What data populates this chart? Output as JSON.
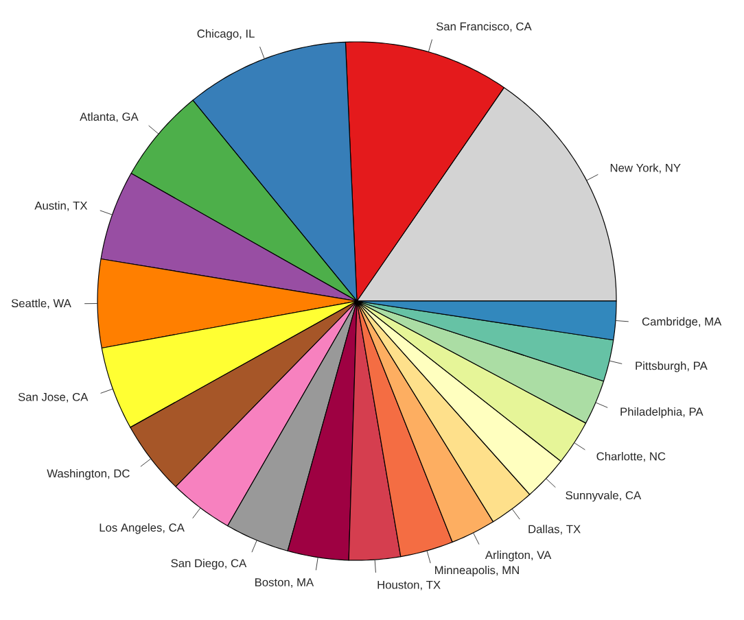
{
  "chart_data": {
    "type": "pie",
    "categories": [
      "New York, NY",
      "San Francisco, CA",
      "Chicago, IL",
      "Atlanta, GA",
      "Austin, TX",
      "Seattle, WA",
      "San Jose, CA",
      "Washington, DC",
      "Los Angeles, CA",
      "San Diego, CA",
      "Boston, MA",
      "Houston, TX",
      "Minneapolis, MN",
      "Arlington, VA",
      "Dallas, TX",
      "Sunnyvale, CA",
      "Charlotte, NC",
      "Philadelphia, PA",
      "Pittsburgh, PA",
      "Cambridge, MA"
    ],
    "values": [
      15.4,
      10.3,
      10.2,
      5.9,
      5.6,
      5.5,
      5.2,
      4.6,
      4.0,
      4.0,
      3.8,
      3.2,
      3.3,
      2.8,
      2.8,
      2.8,
      2.8,
      2.8,
      2.6,
      2.4
    ],
    "colors": [
      "#d3d3d3",
      "#e41a1c",
      "#377eb8",
      "#4daf4a",
      "#984ea3",
      "#ff7f00",
      "#ffff33",
      "#a65628",
      "#f781bf",
      "#999999",
      "#9e0142",
      "#d53e4f",
      "#f46d43",
      "#fdae61",
      "#fee08b",
      "#ffffbf",
      "#e6f598",
      "#abdda4",
      "#66c2a5",
      "#3288bd"
    ]
  }
}
